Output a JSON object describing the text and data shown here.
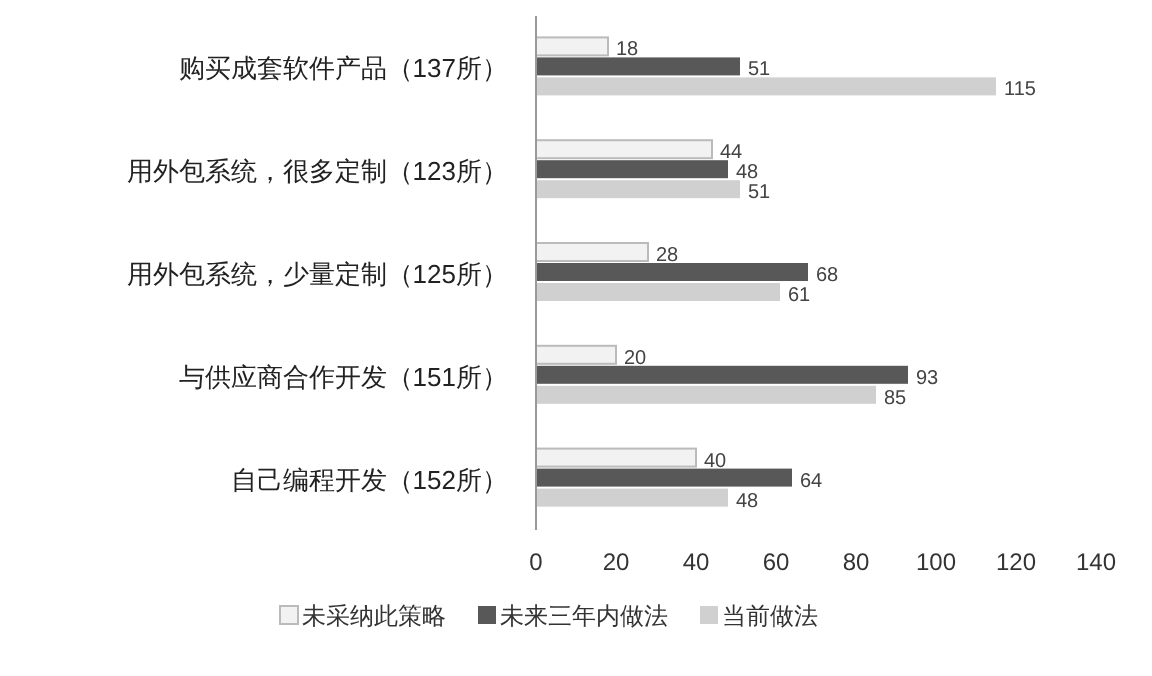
{
  "chart_data": {
    "type": "bar",
    "orientation": "horizontal",
    "categories": [
      "购买成套软件产品（137所）",
      "用外包系统，很多定制（123所）",
      "用外包系统，少量定制（125所）",
      "与供应商合作开发（151所）",
      "自己编程开发（152所）"
    ],
    "series": [
      {
        "name": "未采纳此策略",
        "color": "#f2f2f2",
        "values": [
          18,
          44,
          28,
          20,
          40
        ]
      },
      {
        "name": "未来三年内做法",
        "color": "#585858",
        "values": [
          51,
          48,
          68,
          93,
          64
        ]
      },
      {
        "name": "当前做法",
        "color": "#d0d0d0",
        "values": [
          115,
          51,
          61,
          85,
          48
        ]
      }
    ],
    "xlim": [
      0,
      140
    ],
    "xticks": [
      0,
      20,
      40,
      60,
      80,
      100,
      120,
      140
    ],
    "data_labels": true,
    "legend": "bottom",
    "grid": false
  }
}
